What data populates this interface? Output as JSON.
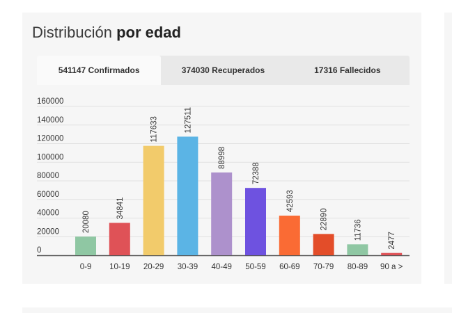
{
  "header": {
    "title_light": "Distribución",
    "title_bold": "por edad"
  },
  "tabs": [
    {
      "label": "541147 Confirmados",
      "active": true
    },
    {
      "label": "374030 Recuperados",
      "active": false
    },
    {
      "label": "17316 Fallecidos",
      "active": false
    }
  ],
  "chart_data": {
    "type": "bar",
    "title": "",
    "xlabel": "",
    "ylabel": "",
    "ylim": [
      0,
      160000
    ],
    "yticks": [
      0,
      20000,
      40000,
      60000,
      80000,
      100000,
      120000,
      140000,
      160000
    ],
    "grid": true,
    "categories": [
      "0-9",
      "10-19",
      "20-29",
      "30-39",
      "40-49",
      "50-59",
      "60-69",
      "70-79",
      "80-89",
      "90 a >"
    ],
    "values": [
      20080,
      34841,
      117633,
      127511,
      88998,
      72388,
      42593,
      22890,
      11736,
      2477
    ],
    "colors": [
      "#8fc7a3",
      "#df5257",
      "#f2cb6b",
      "#5bb4e5",
      "#ad91cc",
      "#6e52e0",
      "#fa6b34",
      "#e34d29",
      "#8fc7a3",
      "#df5257"
    ]
  }
}
